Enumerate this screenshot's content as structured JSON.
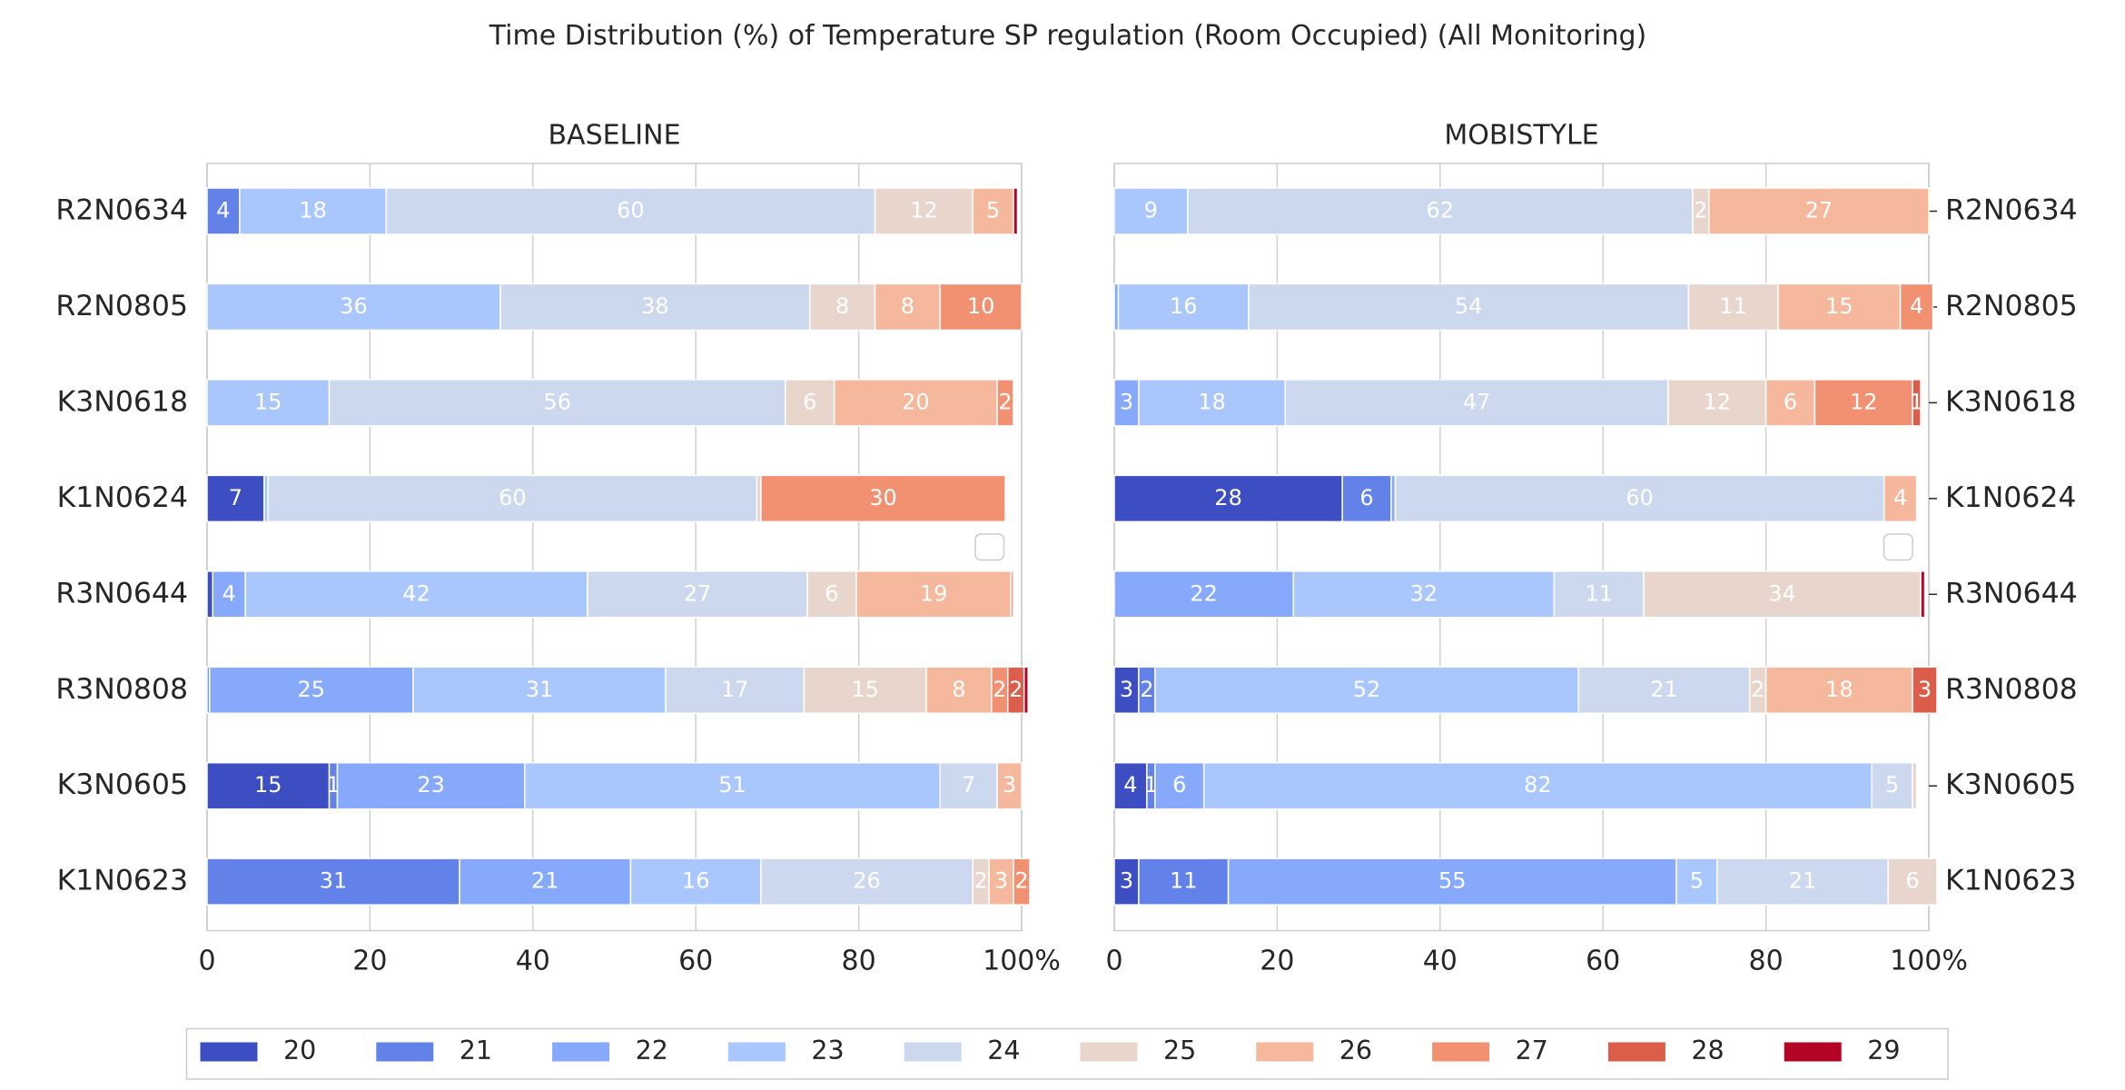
{
  "title": "Time Distribution (%) of Temperature SP regulation (Room Occupied) (All Monitoring)",
  "chart_data": [
    {
      "type": "stacked-barh",
      "title": "BASELINE",
      "label_side": "left",
      "categories": [
        "R2N0634",
        "R2N0805",
        "K3N0618",
        "K1N0624",
        "R3N0644",
        "R3N0808",
        "K3N0605",
        "K1N0623"
      ],
      "xlim": [
        0,
        100
      ],
      "xticks": [
        0,
        20,
        40,
        60,
        80,
        {
          "value": 100,
          "label": "100%"
        }
      ],
      "grid": true,
      "series": [
        {
          "name": "20",
          "color": "#3c4ec2",
          "values": [
            0,
            0,
            0,
            7,
            0.7,
            0,
            15,
            0
          ]
        },
        {
          "name": "21",
          "color": "#6282ea",
          "values": [
            4,
            0,
            0,
            0,
            0,
            0.3,
            1,
            31
          ]
        },
        {
          "name": "22",
          "color": "#86a9fc",
          "values": [
            0,
            0,
            0,
            0,
            4,
            25,
            23,
            21
          ]
        },
        {
          "name": "23",
          "color": "#aac7fd",
          "values": [
            18,
            36,
            15,
            0.5,
            42,
            31,
            51,
            16
          ]
        },
        {
          "name": "24",
          "color": "#cbd8ee",
          "values": [
            60,
            38,
            56,
            60,
            27,
            17,
            7,
            26
          ]
        },
        {
          "name": "25",
          "color": "#e8d6cc",
          "values": [
            12,
            8,
            6,
            0.5,
            6,
            15,
            0,
            2
          ]
        },
        {
          "name": "26",
          "color": "#f6b89c",
          "values": [
            5,
            8,
            20,
            0,
            19,
            8,
            3,
            3
          ]
        },
        {
          "name": "27",
          "color": "#f29072",
          "values": [
            0,
            10,
            2,
            30,
            0.3,
            2,
            0,
            2
          ]
        },
        {
          "name": "28",
          "color": "#dc5d4a",
          "values": [
            0,
            0,
            0,
            0,
            0,
            2,
            0,
            0
          ]
        },
        {
          "name": "29",
          "color": "#b40426",
          "values": [
            0.5,
            0,
            0,
            0,
            0,
            0.5,
            0,
            0
          ]
        }
      ]
    },
    {
      "type": "stacked-barh",
      "title": "MOBISTYLE",
      "label_side": "right",
      "categories": [
        "R2N0634",
        "R2N0805",
        "K3N0618",
        "K1N0624",
        "R3N0644",
        "R3N0808",
        "K3N0605",
        "K1N0623"
      ],
      "xlim": [
        0,
        100
      ],
      "xticks": [
        0,
        20,
        40,
        60,
        80,
        {
          "value": 100,
          "label": "100%"
        }
      ],
      "grid": true,
      "series": [
        {
          "name": "20",
          "color": "#3c4ec2",
          "values": [
            0,
            0,
            0,
            28,
            0,
            3,
            4,
            3
          ]
        },
        {
          "name": "21",
          "color": "#6282ea",
          "values": [
            0,
            0,
            0,
            6,
            0,
            2,
            1,
            11
          ]
        },
        {
          "name": "22",
          "color": "#86a9fc",
          "values": [
            0,
            0.5,
            3,
            0.5,
            22,
            0,
            6,
            55
          ]
        },
        {
          "name": "23",
          "color": "#aac7fd",
          "values": [
            9,
            16,
            18,
            0,
            32,
            52,
            82,
            5
          ]
        },
        {
          "name": "24",
          "color": "#cbd8ee",
          "values": [
            62,
            54,
            47,
            60,
            11,
            21,
            5,
            21
          ]
        },
        {
          "name": "25",
          "color": "#e8d6cc",
          "values": [
            2,
            11,
            12,
            0,
            34,
            2,
            0.5,
            6
          ]
        },
        {
          "name": "26",
          "color": "#f6b89c",
          "values": [
            27,
            15,
            6,
            4,
            0,
            18,
            0,
            0
          ]
        },
        {
          "name": "27",
          "color": "#f29072",
          "values": [
            0,
            4,
            12,
            0,
            0,
            0,
            0,
            0
          ]
        },
        {
          "name": "28",
          "color": "#dc5d4a",
          "values": [
            0,
            0,
            1,
            0,
            0,
            3,
            0,
            0
          ]
        },
        {
          "name": "29",
          "color": "#b40426",
          "values": [
            0,
            0,
            0,
            0,
            0.5,
            0,
            0,
            0
          ]
        }
      ]
    }
  ]
}
